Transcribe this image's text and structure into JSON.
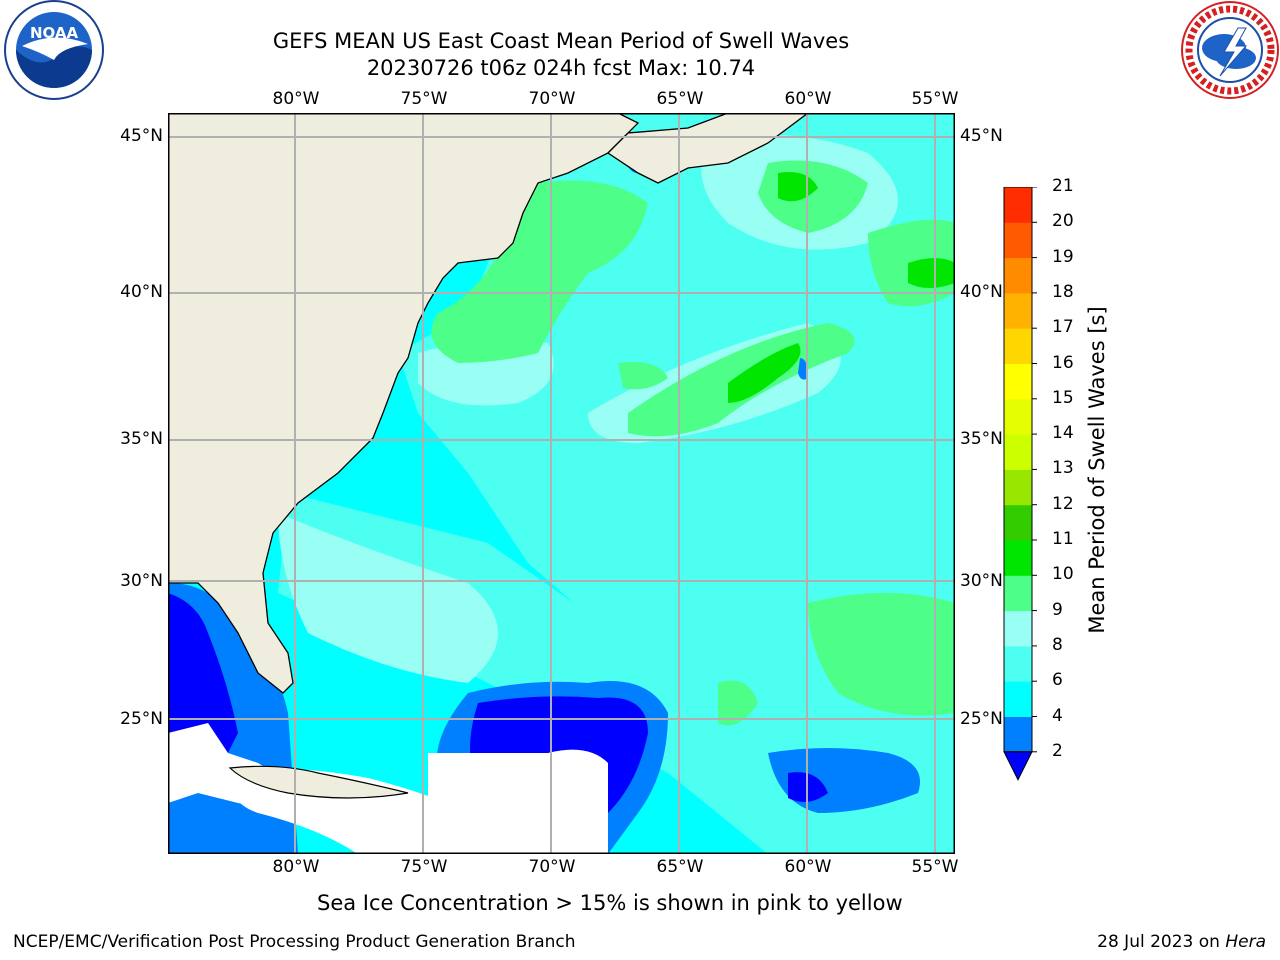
{
  "header": {
    "title_line1": "GEFS MEAN US East Coast Mean Period of Swell Waves",
    "title_line2": "20230726 t06z 024h fcst   Max: 10.74"
  },
  "logos": {
    "left": {
      "name": "noaa-logo",
      "text": "NOAA"
    },
    "right": {
      "name": "nws-logo",
      "text": "NATIONAL WEATHER SERVICE"
    }
  },
  "map": {
    "lon_labels": [
      "80°W",
      "75°W",
      "70°W",
      "65°W",
      "60°W",
      "55°W"
    ],
    "lat_labels": [
      "45°N",
      "40°N",
      "35°N",
      "30°N",
      "25°N"
    ],
    "land_color": "#efedde",
    "ocean_colors": {
      "4_6": "#00ffff",
      "6_8": "#4dfff0",
      "8_9": "#99fff5",
      "9_10": "#4dff88",
      "10_11": "#00e600",
      "2_4": "#0080ff",
      "below_2": "#0000ff"
    }
  },
  "colorbar": {
    "title": "Mean Period of Swell Waves [s]",
    "levels": [
      "2",
      "4",
      "6",
      "8",
      "9",
      "10",
      "11",
      "12",
      "13",
      "14",
      "15",
      "16",
      "17",
      "18",
      "19",
      "20",
      "21"
    ],
    "colors": [
      "#0080ff",
      "#00ffff",
      "#4dfff0",
      "#99fff5",
      "#4dff88",
      "#00e600",
      "#33cc00",
      "#99e600",
      "#ccff00",
      "#e6ff00",
      "#ffff00",
      "#ffd700",
      "#ffb300",
      "#ff8c00",
      "#ff5a00",
      "#ff2d00"
    ],
    "under_color": "#0000ff"
  },
  "caption": "Sea Ice Concentration > 15% is shown in pink to yellow",
  "footer": {
    "left": "NCEP/EMC/Verification Post Processing Product Generation Branch",
    "right_date": "28 Jul 2023 on ",
    "right_host": "Hera"
  }
}
